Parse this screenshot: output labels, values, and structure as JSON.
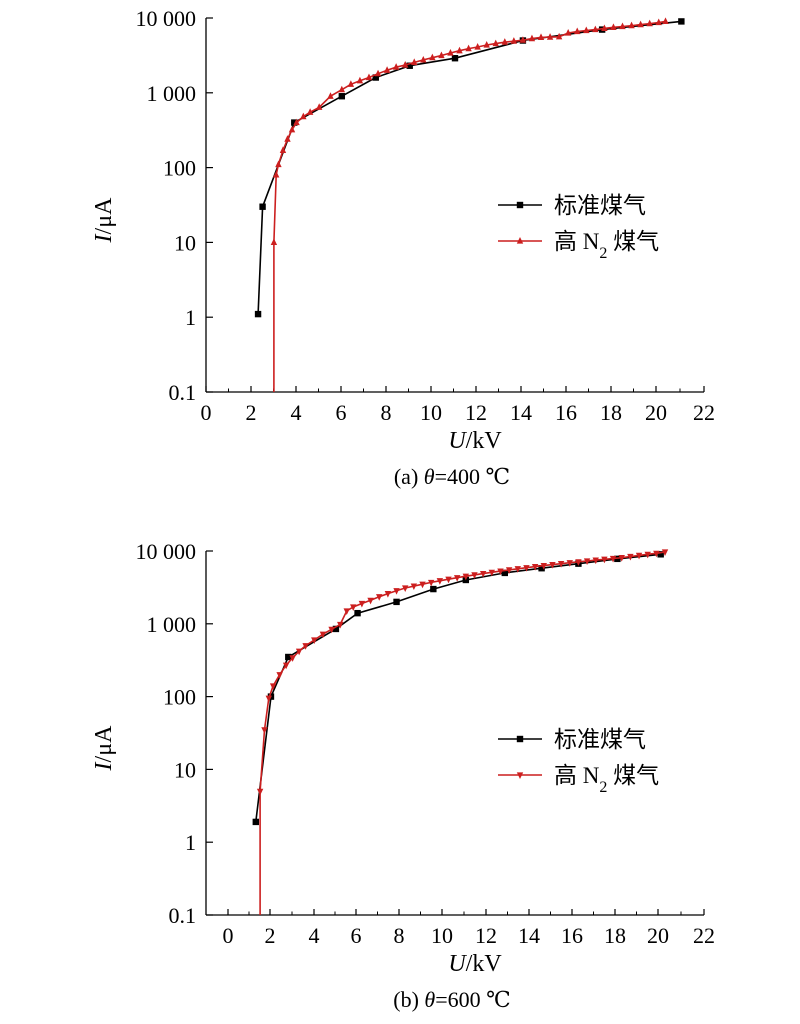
{
  "chart_data": [
    {
      "type": "line",
      "caption": "(a) θ=400 ℃",
      "xlabel": "U/kV",
      "ylabel": "I/μA",
      "xlim": [
        0,
        22
      ],
      "ylim": [
        0.1,
        10000
      ],
      "yscale": "log",
      "xticks": [
        0,
        2,
        4,
        6,
        8,
        10,
        12,
        14,
        16,
        18,
        20,
        22
      ],
      "yticks": [
        0.1,
        1,
        10,
        100,
        1000,
        10000
      ],
      "ytick_labels": [
        "0.1",
        "1",
        "10",
        "100",
        "1 000",
        "10 000"
      ],
      "legend_position": "center-right",
      "series": [
        {
          "name": "标准煤气",
          "color": "#000000",
          "marker": "square",
          "x": [
            2.3,
            2.5,
            3.9,
            6.0,
            7.5,
            9.0,
            11.0,
            14.0,
            17.5,
            21.0
          ],
          "y": [
            1.1,
            30,
            400,
            900,
            1600,
            2300,
            2900,
            5000,
            7000,
            9000
          ]
        },
        {
          "name": "高 N2 煤气",
          "color": "#cc1f1f",
          "marker": "triangle-up",
          "x": [
            3.0,
            3.0,
            3.1,
            3.2,
            3.4,
            3.6,
            3.8,
            4.0,
            4.3,
            4.6,
            5.0,
            5.5,
            6.0,
            6.4,
            6.8,
            7.2,
            7.6,
            8.0,
            8.4,
            8.8,
            9.2,
            9.6,
            10.0,
            10.4,
            10.8,
            11.2,
            11.6,
            12.0,
            12.4,
            12.8,
            13.2,
            13.6,
            14.0,
            14.4,
            14.8,
            15.2,
            15.6,
            16.0,
            16.4,
            16.8,
            17.2,
            17.6,
            18.0,
            18.4,
            18.8,
            19.2,
            19.6,
            20.0,
            20.3
          ],
          "y": [
            0.1,
            10,
            80,
            110,
            170,
            240,
            320,
            400,
            480,
            550,
            640,
            900,
            1100,
            1300,
            1450,
            1600,
            1800,
            2000,
            2200,
            2350,
            2550,
            2750,
            2950,
            3150,
            3400,
            3650,
            3900,
            4100,
            4350,
            4550,
            4750,
            4900,
            5050,
            5300,
            5500,
            5550,
            5600,
            6300,
            6600,
            6800,
            7000,
            7250,
            7500,
            7700,
            7900,
            8150,
            8400,
            8700,
            9000
          ]
        }
      ]
    },
    {
      "type": "line",
      "caption": "(b) θ=600 ℃",
      "xlabel": "U/kV",
      "ylabel": "I/μA",
      "xlim": [
        -1,
        22
      ],
      "ylim": [
        0.1,
        10000
      ],
      "yscale": "log",
      "xticks": [
        0,
        2,
        4,
        6,
        8,
        10,
        12,
        14,
        16,
        18,
        20,
        22
      ],
      "yticks": [
        0.1,
        1,
        10,
        100,
        1000,
        10000
      ],
      "ytick_labels": [
        "0.1",
        "1",
        "10",
        "100",
        "1 000",
        "10 000"
      ],
      "legend_position": "center-right",
      "series": [
        {
          "name": "标准煤气",
          "color": "#000000",
          "marker": "square",
          "x": [
            1.3,
            2.0,
            2.8,
            5.0,
            6.0,
            7.8,
            9.5,
            11.0,
            12.8,
            14.5,
            16.2,
            18.0,
            20.0
          ],
          "y": [
            1.9,
            100,
            350,
            850,
            1400,
            2000,
            3000,
            4000,
            5000,
            5800,
            6700,
            7800,
            9000
          ]
        },
        {
          "name": "高 N2 煤气",
          "color": "#cc1f1f",
          "marker": "triangle-down",
          "x": [
            1.5,
            1.5,
            1.7,
            1.9,
            2.1,
            2.4,
            2.7,
            3.0,
            3.3,
            3.6,
            4.0,
            4.4,
            4.8,
            5.2,
            5.5,
            5.8,
            6.2,
            6.6,
            7.0,
            7.4,
            7.8,
            8.2,
            8.6,
            9.0,
            9.4,
            9.8,
            10.2,
            10.6,
            11.0,
            11.4,
            11.8,
            12.2,
            12.6,
            13.0,
            13.4,
            13.8,
            14.2,
            14.6,
            15.0,
            15.4,
            15.8,
            16.2,
            16.6,
            17.0,
            17.4,
            17.8,
            18.2,
            18.6,
            19.0,
            19.4,
            19.8,
            20.2
          ],
          "y": [
            0.1,
            5,
            35,
            95,
            140,
            200,
            270,
            340,
            420,
            500,
            600,
            720,
            840,
            980,
            1500,
            1700,
            1900,
            2100,
            2350,
            2600,
            2850,
            3100,
            3300,
            3500,
            3700,
            3900,
            4100,
            4300,
            4500,
            4700,
            4900,
            5100,
            5300,
            5500,
            5700,
            5900,
            6100,
            6300,
            6500,
            6700,
            6900,
            7100,
            7300,
            7500,
            7700,
            7900,
            8100,
            8400,
            8700,
            9000,
            9300,
            9700
          ]
        }
      ]
    }
  ]
}
